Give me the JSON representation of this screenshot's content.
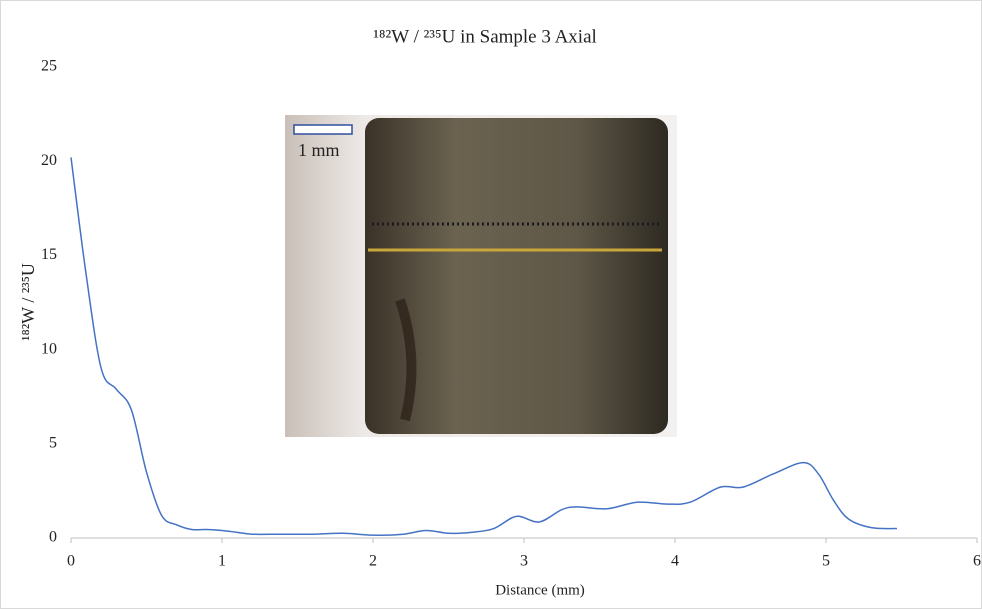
{
  "chart_data": {
    "type": "line",
    "title": "¹⁸²W / ²³⁵U in Sample 3 Axial",
    "x_label": "Distance (mm)",
    "y_label": "¹⁸²W / ²³⁵U",
    "inset_scale_label": "1 mm",
    "series": [
      {
        "color": "#4472c4",
        "x": [
          0,
          0.1,
          0.2,
          0.3,
          0.4,
          0.5,
          0.6,
          0.7,
          0.8,
          0.9,
          1.0,
          1.1,
          1.2,
          1.4,
          1.6,
          1.8,
          2.0,
          2.2,
          2.35,
          2.5,
          2.65,
          2.8,
          2.95,
          3.1,
          3.25,
          3.35,
          3.55,
          3.75,
          3.95,
          4.1,
          4.3,
          4.45,
          4.65,
          4.85,
          4.95,
          5.05,
          5.15,
          5.3,
          5.47
        ],
        "values": [
          20.2,
          14,
          9,
          7.9,
          6.8,
          3.5,
          1.2,
          0.7,
          0.45,
          0.45,
          0.4,
          0.3,
          0.2,
          0.2,
          0.2,
          0.25,
          0.15,
          0.2,
          0.4,
          0.25,
          0.3,
          0.5,
          1.15,
          0.85,
          1.5,
          1.65,
          1.55,
          1.9,
          1.8,
          1.9,
          2.7,
          2.7,
          3.4,
          4.0,
          3.4,
          2.0,
          1.0,
          0.55,
          0.5
        ]
      }
    ],
    "xlim": [
      0,
      6
    ],
    "xticks": [
      0,
      1,
      2,
      3,
      4,
      5,
      6
    ],
    "ylim": [
      0,
      25
    ],
    "yticks": [
      0,
      5,
      10,
      15,
      20,
      25
    ]
  }
}
